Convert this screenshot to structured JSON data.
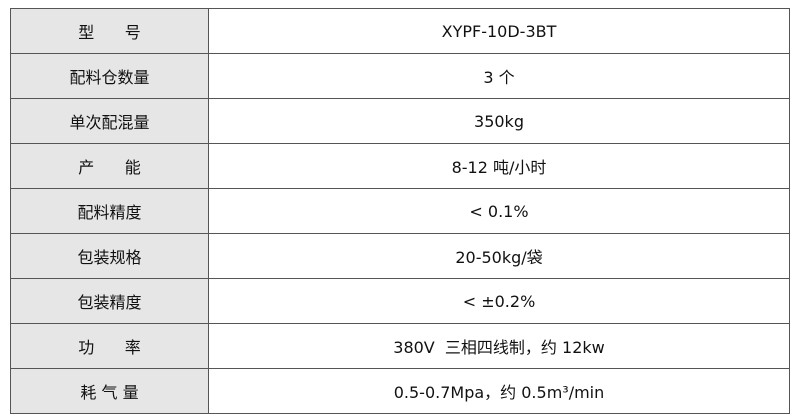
{
  "table": {
    "rows": [
      [
        "型      号",
        "XYPF-10D-3BT"
      ],
      [
        "配料仓数量",
        "3 个"
      ],
      [
        "单次配混量",
        "350kg"
      ],
      [
        "产      能",
        "8-12 吨/小时"
      ],
      [
        "配料精度",
        "< 0.1%"
      ],
      [
        "包装规格",
        "20-50kg/袋"
      ],
      [
        "包装精度",
        "< ±0.2%"
      ],
      [
        "功      率",
        "380V  三相四线制，约 12kw"
      ],
      [
        "耗 气 量",
        "0.5-0.7Mpa，约 0.5m³/min"
      ]
    ]
  }
}
